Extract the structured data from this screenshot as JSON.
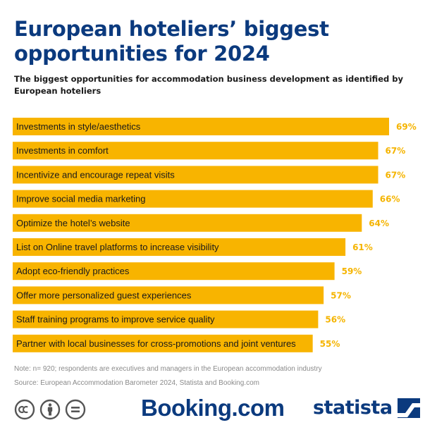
{
  "title": "European hoteliers’ biggest opportunities for 2024",
  "subtitle": "The biggest opportunities for accommodation business development as identified by European hoteliers",
  "note": "Note: n= 920; respondents are executives and managers in the European accommodation industry",
  "source": "Source: European Accommodation Barometer 2024, Statista and Booking.com",
  "logos": {
    "booking": "Booking.com",
    "statista": "statista"
  },
  "icons": {
    "cc": "creative-commons-icon",
    "by": "attribution-icon",
    "nd": "no-derivatives-icon",
    "statista_mark": "statista-logo-icon"
  },
  "colors": {
    "bar": "#f8b400",
    "value_label": "#f5b400",
    "title": "#0b3a7e"
  },
  "chart_data": {
    "type": "bar",
    "orientation": "horizontal",
    "categories": [
      "Investments in style/aesthetics",
      "Investments in comfort",
      "Incentivize and encourage repeat visits",
      "Improve social media marketing",
      "Optimize the hotel’s website",
      "List on Online travel platforms to increase visibility",
      "Adopt eco-friendly practices",
      "Offer more personalized guest experiences",
      "Staff training programs to improve service quality",
      "Partner with local businesses for cross-promotions and joint ventures"
    ],
    "values": [
      69,
      67,
      67,
      66,
      64,
      61,
      59,
      57,
      56,
      55
    ],
    "value_labels": [
      "69%",
      "67%",
      "67%",
      "66%",
      "64%",
      "61%",
      "59%",
      "57%",
      "56%",
      "55%"
    ],
    "unit": "%",
    "xlim": [
      0,
      69
    ],
    "grid": false,
    "legend": "none"
  }
}
